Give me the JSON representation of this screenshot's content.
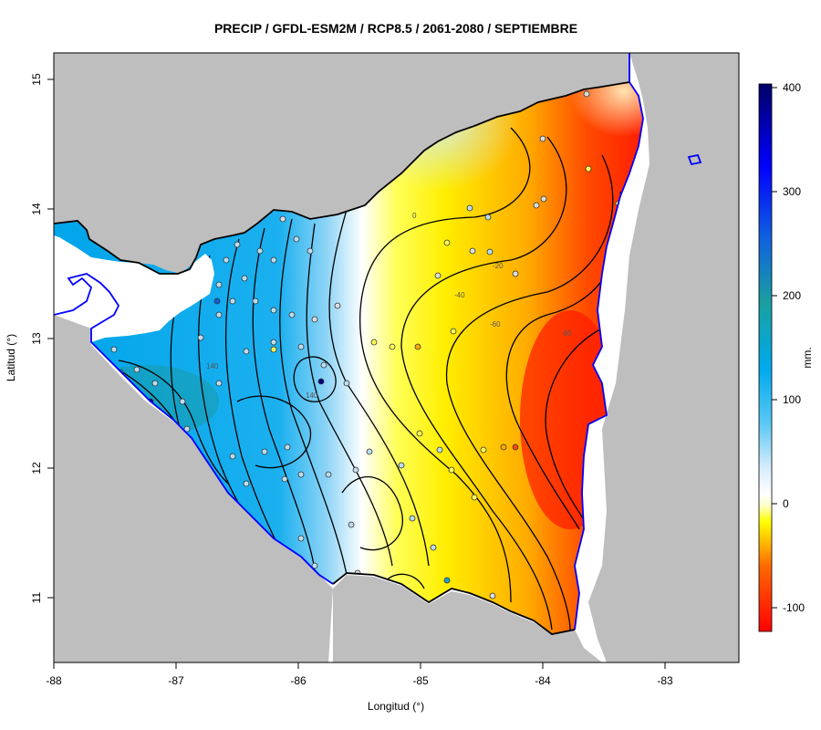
{
  "title": "PRECIP / GFDL-ESM2M / RCP8.5 / 2061-2080 / SEPTIEMBRE",
  "x_axis": {
    "label": "Longitud (°)",
    "ticks": [
      "-88",
      "-87",
      "-86",
      "-85",
      "-84",
      "-83"
    ]
  },
  "y_axis": {
    "label": "Latitud (°)",
    "ticks": [
      "15",
      "14",
      "13",
      "12",
      "11"
    ]
  },
  "colorbar": {
    "unit_label": "mm.",
    "ticks": [
      "400",
      "300",
      "200",
      "100",
      "0",
      "-100"
    ],
    "min": -120,
    "max": 405
  },
  "contour_labels": [
    "0",
    "-20",
    "-40",
    "-60",
    "-80",
    "140",
    "140"
  ],
  "colors": {
    "land_bg": "#bebebe",
    "sea": "#ffffff",
    "coast": "#0000ff",
    "border": "#000000"
  }
}
